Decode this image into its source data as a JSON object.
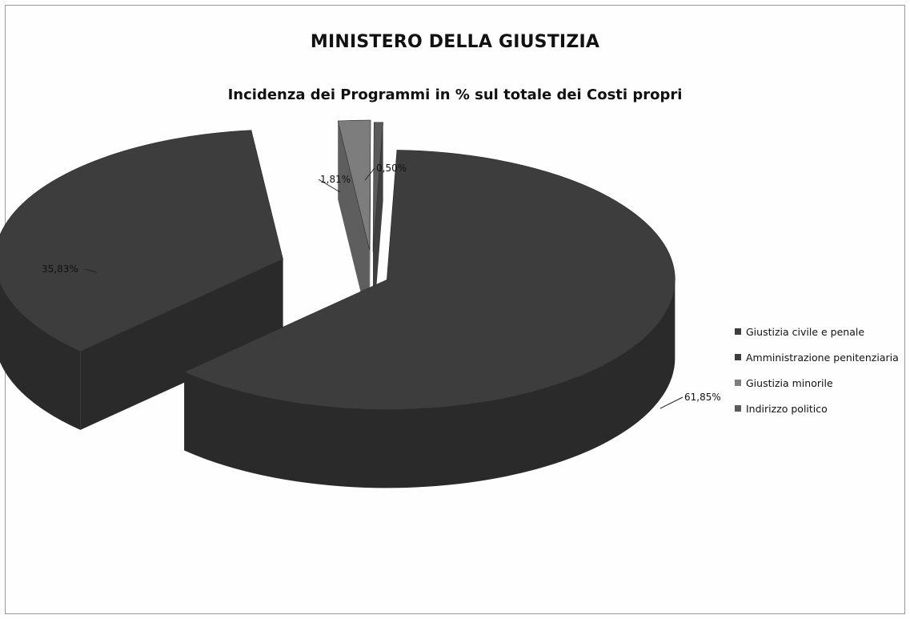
{
  "chart_data": {
    "type": "pie",
    "title": "MINISTERO DELLA GIUSTIZIA",
    "subtitle": "Incidenza dei Programmi in % sul totale dei Costi propri",
    "categories": [
      "Giustizia civile e penale",
      "Amministrazione penitenziaria",
      "Giustizia minorile",
      "Indirizzo politico"
    ],
    "values": [
      61.85,
      35.83,
      1.81,
      0.5
    ],
    "value_labels": [
      "61,85%",
      "35,83%",
      "1,81%",
      "0,50%"
    ],
    "colors": [
      "#3d3d3d",
      "#3d3d3d",
      "#7d7d7d",
      "#5a5a5a"
    ],
    "legend_position": "right",
    "style": "3d-exploded"
  }
}
